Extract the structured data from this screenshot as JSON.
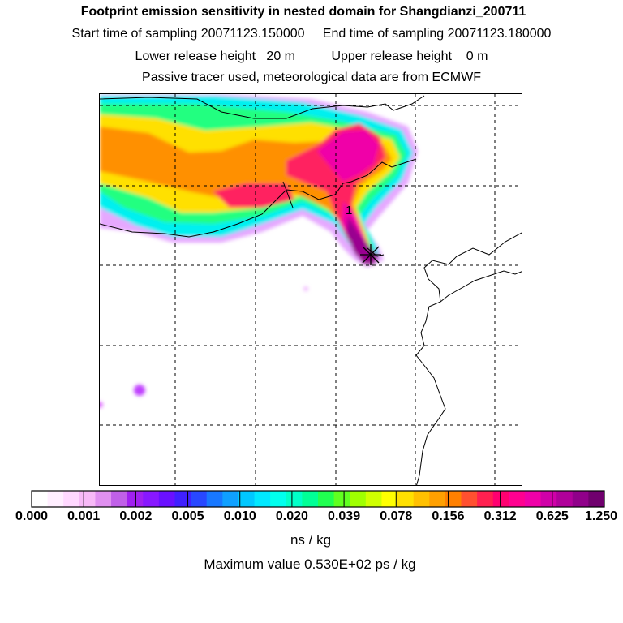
{
  "header": {
    "title": "Footprint emission sensitivity in nested domain for Shangdianzi_200711",
    "sampling": "Start time of sampling 20071123.150000     End time of sampling 20071123.180000",
    "release": "Lower release height   20 m          Upper release height    0 m",
    "tracer": "Passive tracer used, meteorological data are from ECMWF"
  },
  "map": {
    "station_marker_label": "1"
  },
  "colorbar": {
    "ticks": [
      "0.000",
      "0.001",
      "0.002",
      "0.005",
      "0.010",
      "0.020",
      "0.039",
      "0.078",
      "0.156",
      "0.312",
      "0.625",
      "1.250"
    ],
    "units": "ns / kg",
    "colors": [
      "#ffffff",
      "#ffeeff",
      "#ffd8ff",
      "#f7b9f7",
      "#e090f0",
      "#c060e8",
      "#a020f0",
      "#8818ff",
      "#6a10ff",
      "#4020ff",
      "#2848ff",
      "#1878ff",
      "#0fa0ff",
      "#00c8ff",
      "#00e8ff",
      "#00ffee",
      "#00ffc8",
      "#00ff96",
      "#20ff50",
      "#60ff20",
      "#a0ff00",
      "#d0ff00",
      "#ffff00",
      "#ffe000",
      "#ffc000",
      "#ffa000",
      "#ff8000",
      "#ff5030",
      "#ff2050",
      "#ff0070",
      "#ff0090",
      "#f000a8",
      "#d000a8",
      "#b0009a",
      "#90008a",
      "#70006e"
    ]
  },
  "footer": {
    "maximum": "Maximum value  0.530E+02 ps / kg"
  },
  "chart_data": {
    "type": "heatmap",
    "title": "Footprint emission sensitivity in nested domain for Shangdianzi_200711",
    "color_scale_levels": [
      0.0,
      0.001,
      0.002,
      0.005,
      0.01,
      0.02,
      0.039,
      0.078,
      0.156,
      0.312,
      0.625,
      1.25
    ],
    "color_scale_units": "ns / kg",
    "maximum_value_text": "0.530E+02 ps / kg",
    "grid": true
  }
}
